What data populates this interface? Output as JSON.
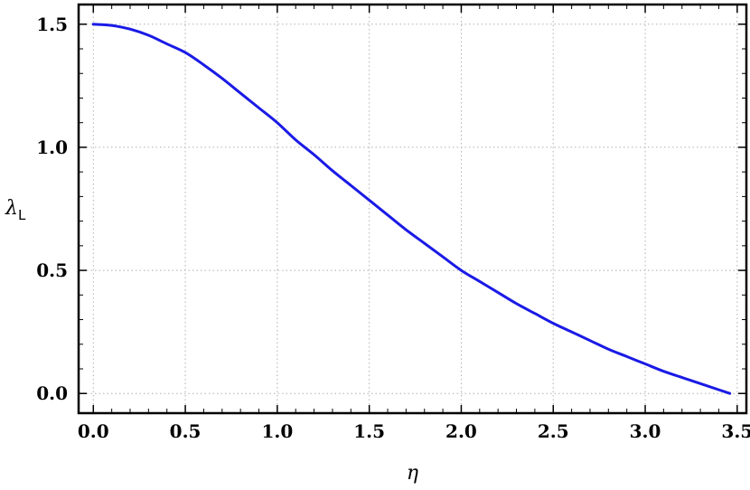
{
  "chart_data": {
    "type": "line",
    "title": "",
    "xlabel": "η",
    "ylabel": {
      "main": "λ",
      "sub": "L"
    },
    "xlim": [
      -0.08,
      3.55
    ],
    "ylim": [
      -0.08,
      1.58
    ],
    "x_ticks": [
      0.0,
      0.5,
      1.0,
      1.5,
      2.0,
      2.5,
      3.0,
      3.5
    ],
    "x_tick_labels": [
      "0.0",
      "0.5",
      "1.0",
      "1.5",
      "2.0",
      "2.5",
      "3.0",
      "3.5"
    ],
    "y_ticks": [
      0.0,
      0.5,
      1.0,
      1.5
    ],
    "y_tick_labels": [
      "0.0",
      "0.5",
      "1.0",
      "1.5"
    ],
    "grid": true,
    "grid_style": "dotted",
    "line_color": "#1a1ae6",
    "series": [
      {
        "x": [
          0.0,
          0.1,
          0.2,
          0.3,
          0.4,
          0.5,
          0.6,
          0.7,
          0.8,
          0.9,
          1.0,
          1.1,
          1.2,
          1.3,
          1.4,
          1.5,
          1.6,
          1.7,
          1.8,
          1.9,
          2.0,
          2.1,
          2.2,
          2.3,
          2.4,
          2.5,
          2.6,
          2.7,
          2.8,
          2.9,
          3.0,
          3.1,
          3.2,
          3.3,
          3.4,
          3.46
        ],
        "y": [
          1.5,
          1.495,
          1.48,
          1.455,
          1.42,
          1.385,
          1.335,
          1.28,
          1.22,
          1.16,
          1.1,
          1.03,
          0.97,
          0.905,
          0.845,
          0.785,
          0.725,
          0.665,
          0.61,
          0.555,
          0.5,
          0.455,
          0.41,
          0.365,
          0.325,
          0.285,
          0.25,
          0.215,
          0.18,
          0.15,
          0.12,
          0.09,
          0.065,
          0.04,
          0.015,
          0.0
        ]
      }
    ]
  }
}
